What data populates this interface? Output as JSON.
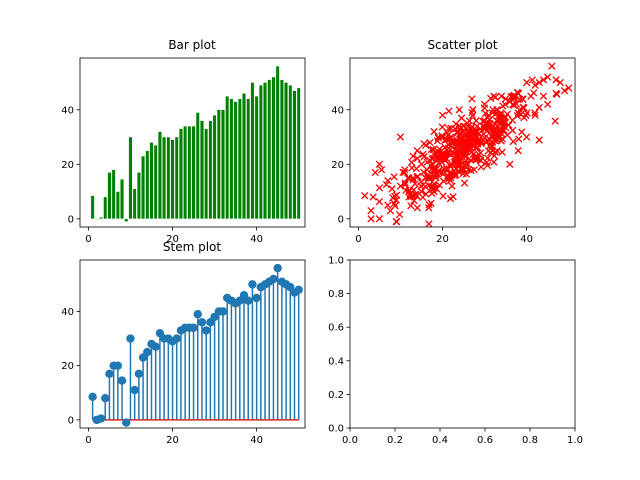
{
  "figure": {
    "background": "#ffffff"
  },
  "chart_data": [
    {
      "id": "bar",
      "type": "bar",
      "title": "Bar plot",
      "color": "#008000",
      "xlabel": "",
      "ylabel": "",
      "xlim": [
        -2,
        51.5
      ],
      "ylim": [
        -3,
        59
      ],
      "xticks": [
        0,
        20,
        40
      ],
      "yticks": [
        0,
        20,
        40
      ],
      "grid": false,
      "x": [
        1,
        2,
        3,
        4,
        5,
        6,
        7,
        8,
        9,
        10,
        11,
        12,
        13,
        14,
        15,
        16,
        17,
        18,
        19,
        20,
        21,
        22,
        23,
        24,
        25,
        26,
        27,
        28,
        29,
        30,
        31,
        32,
        33,
        34,
        35,
        36,
        37,
        38,
        39,
        40,
        41,
        42,
        43,
        44,
        45,
        46,
        47,
        48,
        49,
        50
      ],
      "values": [
        8.5,
        0,
        0.5,
        8,
        17,
        18,
        10,
        14.5,
        -1,
        30,
        11,
        17,
        23,
        25,
        28,
        27,
        32,
        30,
        30,
        29,
        30,
        33,
        34,
        34,
        34,
        39,
        36,
        33,
        36,
        38,
        40,
        40,
        45,
        44,
        43,
        44,
        46,
        44,
        50,
        45,
        49,
        50,
        51,
        52,
        56,
        51,
        50,
        49,
        47,
        48
      ]
    },
    {
      "id": "scatter",
      "type": "scatter",
      "title": "Scatter plot",
      "color": "#ff0000",
      "marker": "x",
      "xlabel": "",
      "ylabel": "",
      "xlim": [
        -2,
        51.5
      ],
      "ylim": [
        -3,
        59
      ],
      "xticks": [
        0,
        20,
        40
      ],
      "yticks": [
        0,
        20,
        40
      ],
      "grid": false,
      "points": [
        [
          1.5,
          8.5
        ],
        [
          3,
          0
        ],
        [
          3,
          3
        ],
        [
          3.5,
          8
        ],
        [
          4,
          17
        ],
        [
          5,
          20
        ],
        [
          5.5,
          18
        ],
        [
          7,
          14
        ],
        [
          7,
          5
        ],
        [
          8,
          11
        ],
        [
          9,
          -1
        ],
        [
          10,
          30
        ],
        [
          10,
          12
        ],
        [
          11,
          17
        ],
        [
          12,
          15
        ],
        [
          13,
          23
        ],
        [
          14,
          25
        ],
        [
          15,
          20
        ],
        [
          16,
          27
        ],
        [
          17,
          28
        ],
        [
          18,
          32
        ],
        [
          19,
          30
        ],
        [
          20,
          30
        ],
        [
          21,
          29
        ],
        [
          22,
          30
        ],
        [
          23,
          33
        ],
        [
          24,
          34
        ],
        [
          25,
          34
        ],
        [
          26,
          34
        ],
        [
          27,
          39
        ],
        [
          28,
          36
        ],
        [
          29,
          33
        ],
        [
          30,
          36
        ],
        [
          31,
          38
        ],
        [
          32,
          40
        ],
        [
          33,
          40
        ],
        [
          34,
          45
        ],
        [
          35,
          44
        ],
        [
          36,
          43
        ],
        [
          37,
          44
        ],
        [
          38,
          46
        ],
        [
          39,
          44
        ],
        [
          40,
          50
        ],
        [
          41,
          45
        ],
        [
          42,
          49
        ],
        [
          43,
          50
        ],
        [
          44,
          51
        ],
        [
          45,
          52
        ],
        [
          46,
          56
        ],
        [
          47,
          51
        ],
        [
          48,
          50
        ],
        [
          49,
          47
        ],
        [
          50,
          48
        ],
        [
          33,
          25
        ],
        [
          36,
          20
        ],
        [
          38,
          25
        ],
        [
          30,
          42
        ],
        [
          27,
          44
        ],
        [
          24,
          40
        ],
        [
          20,
          38
        ],
        [
          18,
          10
        ],
        [
          15,
          10
        ],
        [
          12,
          8
        ],
        [
          16,
          15
        ],
        [
          22,
          15
        ],
        [
          25,
          18
        ],
        [
          28,
          22
        ],
        [
          40,
          30
        ],
        [
          42,
          38
        ],
        [
          44,
          45
        ],
        [
          45,
          42
        ],
        [
          47,
          46
        ]
      ],
      "cloud": {
        "count": 430,
        "x_mean": 25,
        "x_sd": 8,
        "slope": 1.0,
        "intercept": 0,
        "noise_sd": 5.5,
        "x_range": [
          5,
          49
        ]
      }
    },
    {
      "id": "stem",
      "type": "stem",
      "title": "Stem plot",
      "color": "#1f77b4",
      "baseline_color": "#d62728",
      "xlabel": "",
      "ylabel": "",
      "xlim": [
        -2,
        51.5
      ],
      "ylim": [
        -3,
        59
      ],
      "xticks": [
        0,
        20,
        40
      ],
      "yticks": [
        0,
        20,
        40
      ],
      "grid": false,
      "x": [
        1,
        2,
        3,
        4,
        5,
        6,
        7,
        8,
        9,
        10,
        11,
        12,
        13,
        14,
        15,
        16,
        17,
        18,
        19,
        20,
        21,
        22,
        23,
        24,
        25,
        26,
        27,
        28,
        29,
        30,
        31,
        32,
        33,
        34,
        35,
        36,
        37,
        38,
        39,
        40,
        41,
        42,
        43,
        44,
        45,
        46,
        47,
        48,
        49,
        50
      ],
      "values": [
        8.5,
        0,
        0.5,
        8,
        17,
        20,
        20,
        14.5,
        -1,
        30,
        11,
        17,
        23,
        25,
        28,
        27,
        32,
        30,
        30,
        29,
        30,
        33,
        34,
        34,
        34,
        39,
        36,
        33,
        36,
        38,
        40,
        40,
        45,
        44,
        43,
        44,
        46,
        44,
        50,
        45,
        49,
        50,
        51,
        52,
        56,
        51,
        50,
        49,
        47,
        48
      ]
    },
    {
      "id": "empty",
      "type": "empty",
      "title": "",
      "xlabel": "",
      "ylabel": "",
      "xlim": [
        0,
        1
      ],
      "ylim": [
        0,
        1
      ],
      "xticks": [
        0.0,
        0.2,
        0.4,
        0.6,
        0.8,
        1.0
      ],
      "yticks": [
        0.0,
        0.2,
        0.4,
        0.6,
        0.8,
        1.0
      ],
      "xtick_labels": [
        "0.0",
        "0.2",
        "0.4",
        "0.6",
        "0.8",
        "1.0"
      ],
      "ytick_labels": [
        "0.0",
        "0.2",
        "0.4",
        "0.6",
        "0.8",
        "1.0"
      ],
      "grid": false
    }
  ]
}
